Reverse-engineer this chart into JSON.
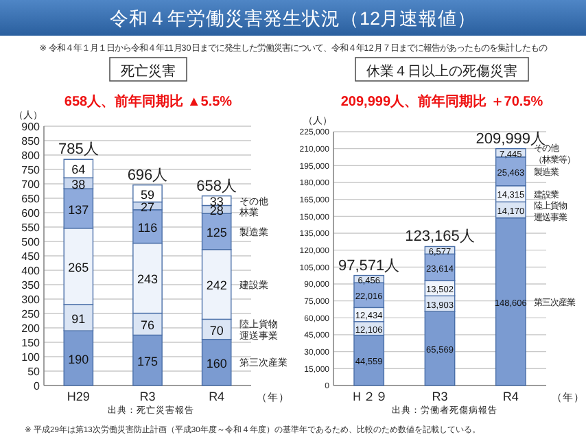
{
  "chart_data": [
    {
      "type": "bar",
      "stacked": true,
      "title": "死亡災害",
      "subtitle": "658人、前年同期比 ▲5.5%",
      "ylabel": "（人）",
      "xlabel": "（年）",
      "categories": [
        "H29",
        "R3",
        "R4"
      ],
      "series": [
        {
          "name": "第三次産業",
          "color": "#7b9bd1",
          "values": [
            190,
            175,
            160
          ]
        },
        {
          "name": "陸上貨物運送事業",
          "color": "#dbe5f4",
          "values": [
            91,
            76,
            70
          ]
        },
        {
          "name": "建設業",
          "color": "#eef3fb",
          "values": [
            265,
            243,
            242
          ]
        },
        {
          "name": "製造業",
          "color": "#8eaadc",
          "values": [
            137,
            116,
            125
          ]
        },
        {
          "name": "林業",
          "color": "#c9d7ee",
          "values": [
            38,
            27,
            28
          ]
        },
        {
          "name": "その他",
          "color": "#ffffff",
          "values": [
            64,
            59,
            33
          ]
        }
      ],
      "totals": [
        "785人",
        "696人",
        "658人"
      ],
      "data_labels": true,
      "ylim": [
        0,
        900
      ],
      "yticks": [
        0,
        50,
        100,
        150,
        200,
        250,
        300,
        350,
        400,
        450,
        500,
        550,
        600,
        650,
        700,
        750,
        800,
        850,
        900
      ],
      "grid": "y",
      "annotations": [
        "令和４年労働災害発生状況（12月速報値）",
        "※ 令和４年１月１日から令和４年11月30日までに発生した労働災害について、令和４年12月７日までに報告があったものを集計したもの",
        "出典：死亡災害報告"
      ]
    },
    {
      "type": "bar",
      "stacked": true,
      "title": "休業４日以上の死傷災害",
      "subtitle": "209,999人、前年同期比 ＋70.5%",
      "ylabel": "（人）",
      "xlabel": "（年）",
      "categories": [
        "Ｈ２９",
        "R3",
        "R4"
      ],
      "series": [
        {
          "name": "第三次産業",
          "color": "#7b9bd1",
          "values": [
            44559,
            65569,
            148606
          ],
          "value_labels": [
            "44,559",
            "65,569",
            "148,606"
          ]
        },
        {
          "name": "陸上貨物運送事業",
          "color": "#dbe5f4",
          "values": [
            12106,
            13903,
            14170
          ],
          "value_labels": [
            "12,106",
            "13,903",
            "14,170"
          ]
        },
        {
          "name": "建設業",
          "color": "#eef3fb",
          "values": [
            12434,
            13502,
            14315
          ],
          "value_labels": [
            "12,434",
            "13,502",
            "14,315"
          ]
        },
        {
          "name": "製造業",
          "color": "#8eaadc",
          "values": [
            22016,
            23614,
            25463
          ],
          "value_labels": [
            "22,016",
            "23,614",
            "25,463"
          ]
        },
        {
          "name": "その他（林業等）",
          "color": "#dbe5f4",
          "values": [
            6456,
            6577,
            7445
          ],
          "value_labels": [
            "6,456",
            "6,577",
            "7,445"
          ]
        }
      ],
      "totals": [
        "97,571人",
        "123,165人",
        "209,999人"
      ],
      "ylim": [
        0,
        225000
      ],
      "yticks": [
        {
          "value": 0,
          "label": "0"
        },
        {
          "value": 15000,
          "label": "15,000"
        },
        {
          "value": 30000,
          "label": "30,000"
        },
        {
          "value": 45000,
          "label": "45,000"
        },
        {
          "value": 60000,
          "label": "60,000"
        },
        {
          "value": 75000,
          "label": "75,000"
        },
        {
          "value": 90000,
          "label": "90,000"
        },
        {
          "value": 105000,
          "label": "105,000"
        },
        {
          "value": 120000,
          "label": "120,000"
        },
        {
          "value": 135000,
          "label": "135,000"
        },
        {
          "value": 150000,
          "label": "150,000"
        },
        {
          "value": 165000,
          "label": "165,000"
        },
        {
          "value": 180000,
          "label": "180,000"
        },
        {
          "value": 195000,
          "label": "195,000"
        },
        {
          "value": 210000,
          "label": "210,000"
        },
        {
          "value": 225000,
          "label": "225,000"
        }
      ],
      "grid": "y",
      "annotations": [
        "出典：労働者死傷病報告",
        "※ 平成29年は第13次労働災害防止計画（平成30年度～令和４年度）の基準年であるため、比較のため数値を記載している。"
      ]
    }
  ]
}
